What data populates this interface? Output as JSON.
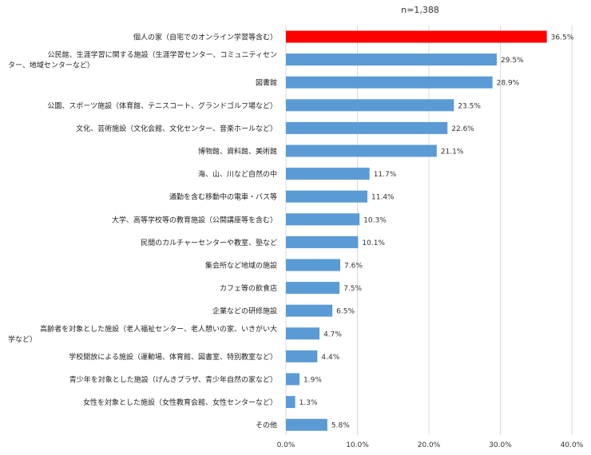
{
  "chart_data": {
    "type": "bar",
    "orientation": "horizontal",
    "note": "n=1,388",
    "categories": [
      "個人の家（自宅でのオンライン学習等含む）",
      [
        "公民館、生涯学習に関する施設（生涯学習センター、コミュニティセン",
        "ター、地域センターなど）"
      ],
      "図書館",
      "公園、スポーツ施設（体育館、テニスコート、グランドゴルフ場など）",
      "文化、芸術施設（文化会館、文化センター、音楽ホールなど）",
      "博物館、資料館、美術館",
      "海、山、川など自然の中",
      "通勤を含む移動中の電車・バス等",
      "大学、高等学校等の教育施設（公開講座等を含む）",
      "民間のカルチャーセンターや教室、塾など",
      "集会所など地域の施設",
      "カフェ等の飲食店",
      "企業などの研修施設",
      [
        "高齢者を対象とした施設（老人福祉センター、老人憩いの家、いきがい大",
        "学など）"
      ],
      "学校開放による施設（運動場、体育館、図書室、特別教室など）",
      "青少年を対象とした施設（げんきプラザ、青少年自然の家など）",
      "女性を対象とした施設（女性教育会館、女性センターなど）",
      "その他"
    ],
    "values": [
      36.5,
      29.5,
      28.9,
      23.5,
      22.6,
      21.1,
      11.7,
      11.4,
      10.3,
      10.1,
      7.6,
      7.5,
      6.5,
      4.7,
      4.4,
      1.9,
      1.3,
      5.8
    ],
    "value_labels": [
      "36.5%",
      "29.5%",
      "28.9%",
      "23.5%",
      "22.6%",
      "21.1%",
      "11.7%",
      "11.4%",
      "10.3%",
      "10.1%",
      "7.6%",
      "7.5%",
      "6.5%",
      "4.7%",
      "4.4%",
      "1.9%",
      "1.3%",
      "5.8%"
    ],
    "xlim": [
      0,
      40
    ],
    "xticks": [
      0,
      10,
      20,
      30,
      40
    ],
    "xtick_labels": [
      "0.0%",
      "10.0%",
      "20.0%",
      "30.0%",
      "40.0%"
    ],
    "grid": "vertical",
    "colors": {
      "highlight": "#ff0000",
      "bar": "#5b9bd5",
      "grid": "#d9d9d9"
    },
    "highlight_index": 0
  }
}
